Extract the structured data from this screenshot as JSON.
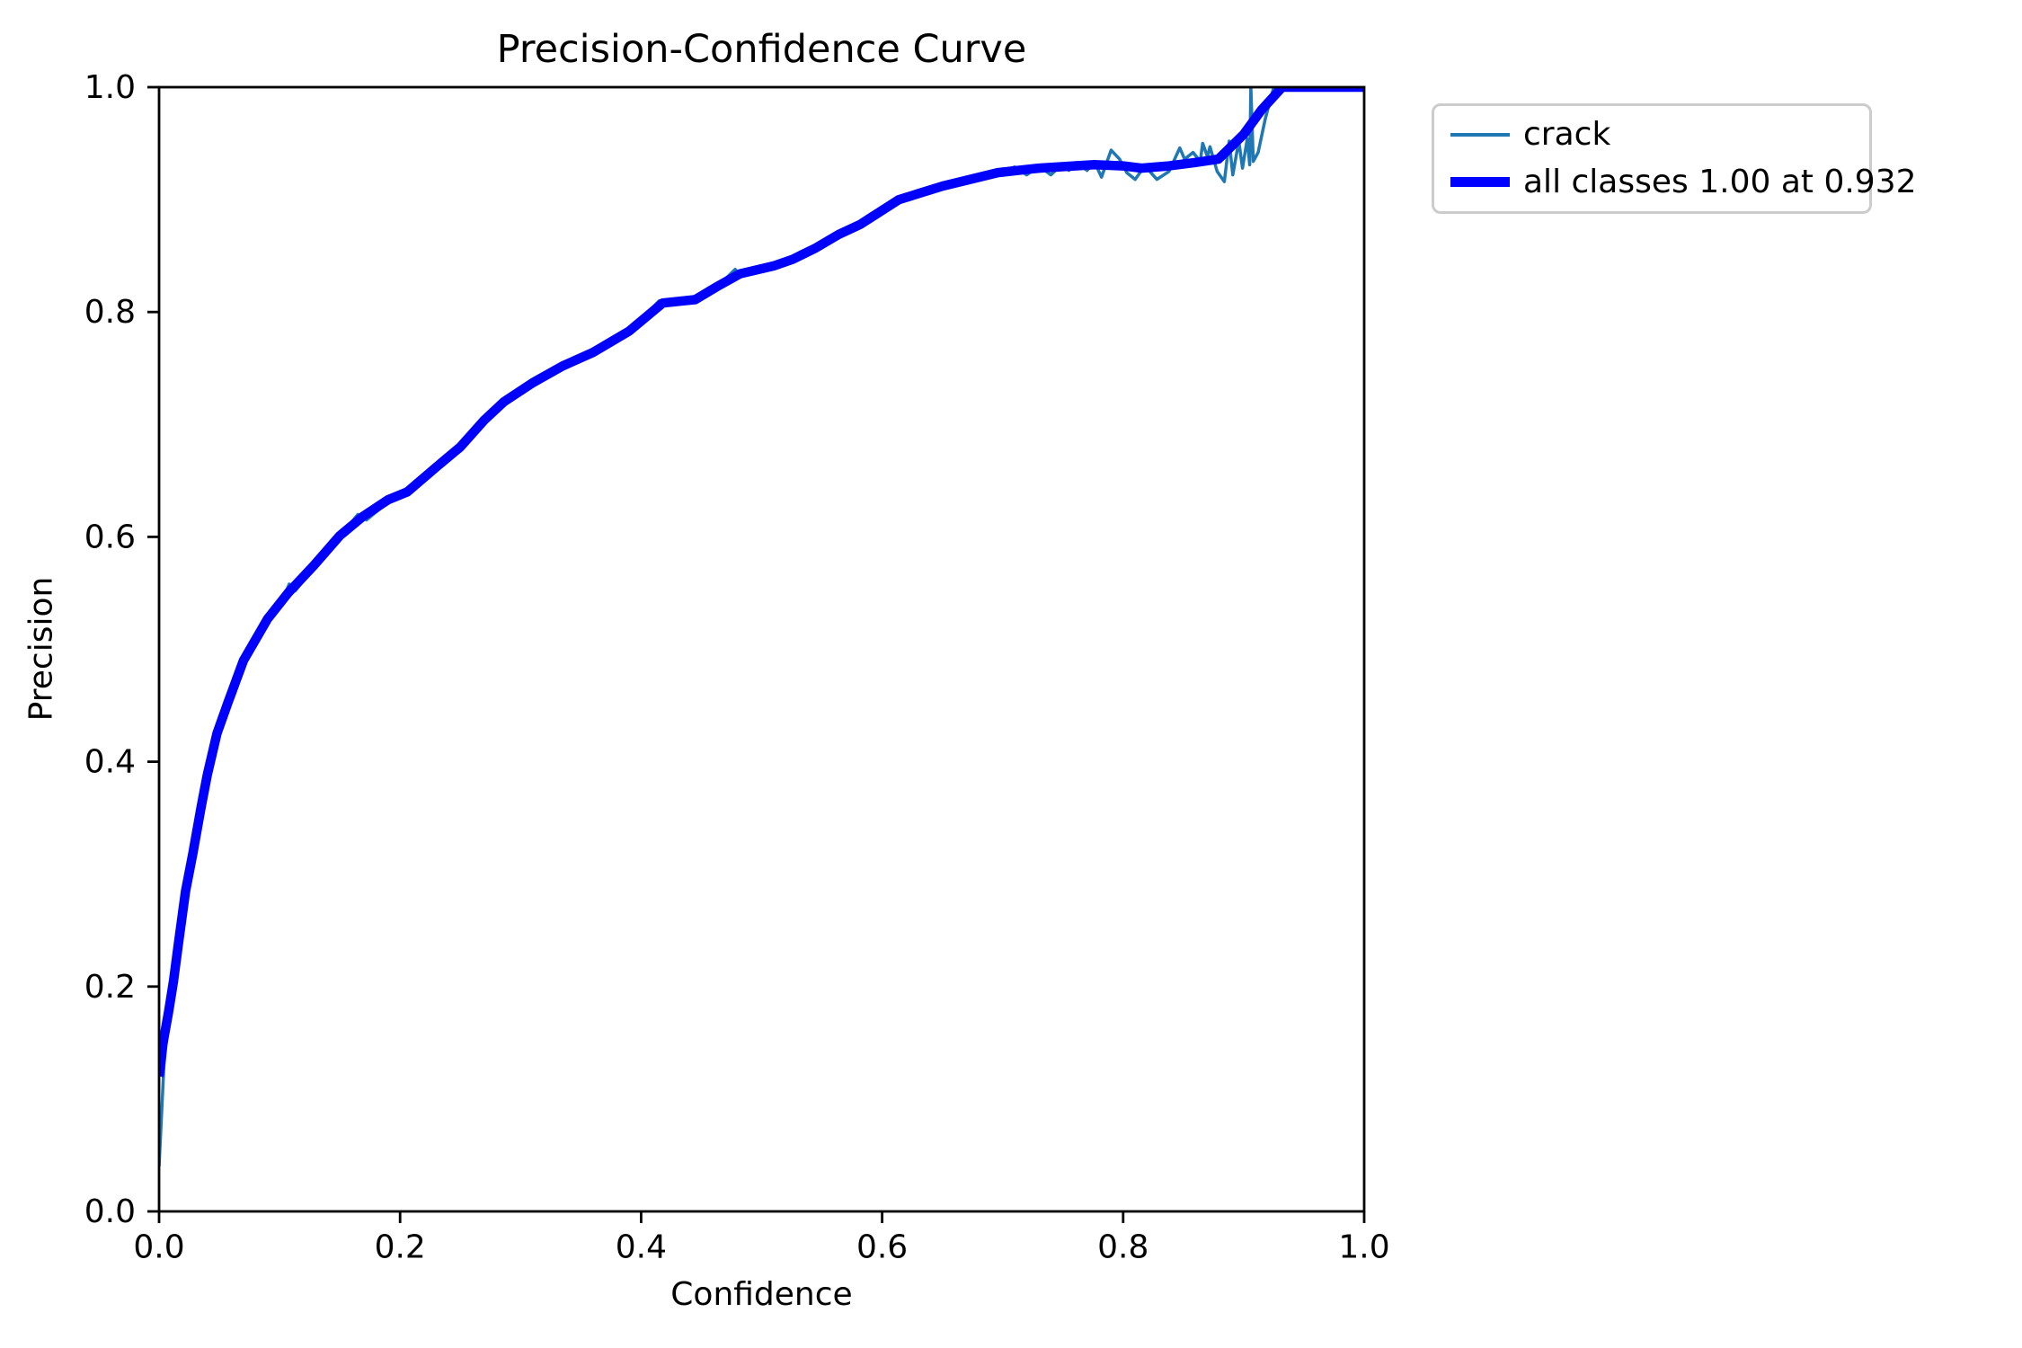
{
  "figure": {
    "title": "Precision-Confidence Curve"
  },
  "axes": {
    "xlabel": "Confidence",
    "ylabel": "Precision",
    "x_tick_labels": [
      "0.0",
      "0.2",
      "0.4",
      "0.6",
      "0.8",
      "1.0"
    ],
    "y_tick_labels": [
      "0.0",
      "0.2",
      "0.4",
      "0.6",
      "0.8",
      "1.0"
    ]
  },
  "legend": {
    "entries": [
      {
        "label": "crack",
        "color": "#1f77b4",
        "style": "thin"
      },
      {
        "label": "all classes 1.00 at 0.932",
        "color": "#0000ff",
        "style": "thick"
      }
    ]
  },
  "chart_data": {
    "type": "line",
    "title": "Precision-Confidence Curve",
    "xlabel": "Confidence",
    "ylabel": "Precision",
    "xlim": [
      0.0,
      1.0
    ],
    "ylim": [
      0.0,
      1.0
    ],
    "x_ticks": [
      0.0,
      0.2,
      0.4,
      0.6,
      0.8,
      1.0
    ],
    "y_ticks": [
      0.0,
      0.2,
      0.4,
      0.6,
      0.8,
      1.0
    ],
    "grid": false,
    "legend_position": "outside upper right",
    "series": [
      {
        "name": "crack",
        "color": "#1f77b4",
        "linewidth": 3.5,
        "points": [
          [
            0.0,
            0.04
          ],
          [
            0.002,
            0.085
          ],
          [
            0.004,
            0.13
          ],
          [
            0.008,
            0.172
          ],
          [
            0.012,
            0.2
          ],
          [
            0.016,
            0.233
          ],
          [
            0.022,
            0.28
          ],
          [
            0.028,
            0.314
          ],
          [
            0.035,
            0.357
          ],
          [
            0.04,
            0.385
          ],
          [
            0.048,
            0.422
          ],
          [
            0.057,
            0.45
          ],
          [
            0.07,
            0.487
          ],
          [
            0.09,
            0.524
          ],
          [
            0.103,
            0.545
          ],
          [
            0.108,
            0.558
          ],
          [
            0.113,
            0.552
          ],
          [
            0.128,
            0.572
          ],
          [
            0.15,
            0.6
          ],
          [
            0.165,
            0.62
          ],
          [
            0.172,
            0.615
          ],
          [
            0.19,
            0.631
          ],
          [
            0.206,
            0.638
          ],
          [
            0.23,
            0.66
          ],
          [
            0.25,
            0.678
          ],
          [
            0.27,
            0.702
          ],
          [
            0.286,
            0.718
          ],
          [
            0.31,
            0.735
          ],
          [
            0.335,
            0.75
          ],
          [
            0.36,
            0.762
          ],
          [
            0.376,
            0.774
          ],
          [
            0.39,
            0.782
          ],
          [
            0.415,
            0.81
          ],
          [
            0.445,
            0.81
          ],
          [
            0.462,
            0.821
          ],
          [
            0.478,
            0.838
          ],
          [
            0.482,
            0.833
          ],
          [
            0.51,
            0.84
          ],
          [
            0.524,
            0.848
          ],
          [
            0.545,
            0.856
          ],
          [
            0.564,
            0.868
          ],
          [
            0.582,
            0.877
          ],
          [
            0.614,
            0.899
          ],
          [
            0.65,
            0.911
          ],
          [
            0.68,
            0.92
          ],
          [
            0.696,
            0.923
          ],
          [
            0.71,
            0.929
          ],
          [
            0.72,
            0.922
          ],
          [
            0.73,
            0.93
          ],
          [
            0.74,
            0.922
          ],
          [
            0.748,
            0.93
          ],
          [
            0.755,
            0.926
          ],
          [
            0.761,
            0.933
          ],
          [
            0.77,
            0.926
          ],
          [
            0.776,
            0.934
          ],
          [
            0.782,
            0.92
          ],
          [
            0.79,
            0.944
          ],
          [
            0.797,
            0.936
          ],
          [
            0.803,
            0.924
          ],
          [
            0.81,
            0.918
          ],
          [
            0.818,
            0.93
          ],
          [
            0.828,
            0.918
          ],
          [
            0.838,
            0.925
          ],
          [
            0.847,
            0.946
          ],
          [
            0.851,
            0.936
          ],
          [
            0.858,
            0.942
          ],
          [
            0.864,
            0.934
          ],
          [
            0.866,
            0.95
          ],
          [
            0.87,
            0.938
          ],
          [
            0.872,
            0.947
          ],
          [
            0.878,
            0.925
          ],
          [
            0.884,
            0.916
          ],
          [
            0.888,
            0.952
          ],
          [
            0.891,
            0.922
          ],
          [
            0.896,
            0.952
          ],
          [
            0.899,
            0.928
          ],
          [
            0.903,
            0.954
          ],
          [
            0.905,
            0.931
          ],
          [
            0.906,
            1.0
          ],
          [
            0.908,
            0.934
          ],
          [
            0.912,
            0.942
          ],
          [
            0.918,
            0.972
          ],
          [
            0.925,
            1.0
          ],
          [
            1.0,
            1.0
          ]
        ]
      },
      {
        "name": "all classes 1.00 at 0.932",
        "color": "#0000ff",
        "linewidth": 10.5,
        "points": [
          [
            0.0,
            0.12
          ],
          [
            0.003,
            0.148
          ],
          [
            0.008,
            0.178
          ],
          [
            0.012,
            0.205
          ],
          [
            0.016,
            0.238
          ],
          [
            0.022,
            0.285
          ],
          [
            0.028,
            0.318
          ],
          [
            0.035,
            0.36
          ],
          [
            0.04,
            0.388
          ],
          [
            0.048,
            0.425
          ],
          [
            0.057,
            0.452
          ],
          [
            0.07,
            0.49
          ],
          [
            0.09,
            0.527
          ],
          [
            0.107,
            0.55
          ],
          [
            0.128,
            0.574
          ],
          [
            0.15,
            0.601
          ],
          [
            0.169,
            0.618
          ],
          [
            0.19,
            0.633
          ],
          [
            0.206,
            0.64
          ],
          [
            0.23,
            0.662
          ],
          [
            0.25,
            0.68
          ],
          [
            0.27,
            0.704
          ],
          [
            0.286,
            0.72
          ],
          [
            0.31,
            0.737
          ],
          [
            0.335,
            0.752
          ],
          [
            0.36,
            0.764
          ],
          [
            0.39,
            0.783
          ],
          [
            0.418,
            0.808
          ],
          [
            0.445,
            0.811
          ],
          [
            0.462,
            0.822
          ],
          [
            0.482,
            0.834
          ],
          [
            0.51,
            0.841
          ],
          [
            0.526,
            0.847
          ],
          [
            0.545,
            0.857
          ],
          [
            0.564,
            0.869
          ],
          [
            0.582,
            0.878
          ],
          [
            0.614,
            0.9
          ],
          [
            0.65,
            0.912
          ],
          [
            0.696,
            0.924
          ],
          [
            0.73,
            0.928
          ],
          [
            0.776,
            0.931
          ],
          [
            0.8,
            0.93
          ],
          [
            0.815,
            0.928
          ],
          [
            0.838,
            0.93
          ],
          [
            0.86,
            0.933
          ],
          [
            0.879,
            0.936
          ],
          [
            0.9,
            0.958
          ],
          [
            0.915,
            0.98
          ],
          [
            0.932,
            1.0
          ],
          [
            1.0,
            1.0
          ]
        ]
      }
    ]
  }
}
